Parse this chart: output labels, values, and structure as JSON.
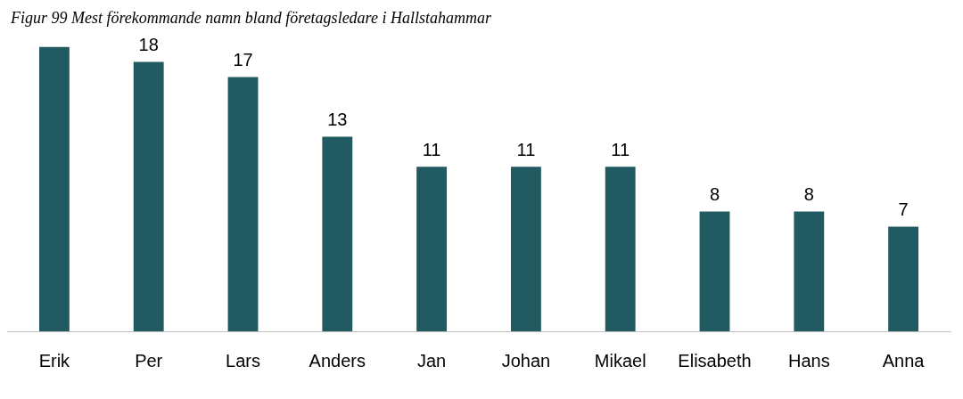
{
  "chart_data": {
    "type": "bar",
    "title": "Figur 99 Mest förekommande namn bland företagsledare i Hallstahammar",
    "categories": [
      "Erik",
      "Per",
      "Lars",
      "Anders",
      "Jan",
      "Johan",
      "Mikael",
      "Elisabeth",
      "Hans",
      "Anna"
    ],
    "values": [
      19,
      18,
      17,
      13,
      11,
      11,
      11,
      8,
      8,
      7
    ],
    "value_labels": [
      null,
      "18",
      "17",
      "13",
      "11",
      "11",
      "11",
      "8",
      "8",
      "7"
    ],
    "color": "#215a61",
    "grid": false,
    "legend": false
  }
}
